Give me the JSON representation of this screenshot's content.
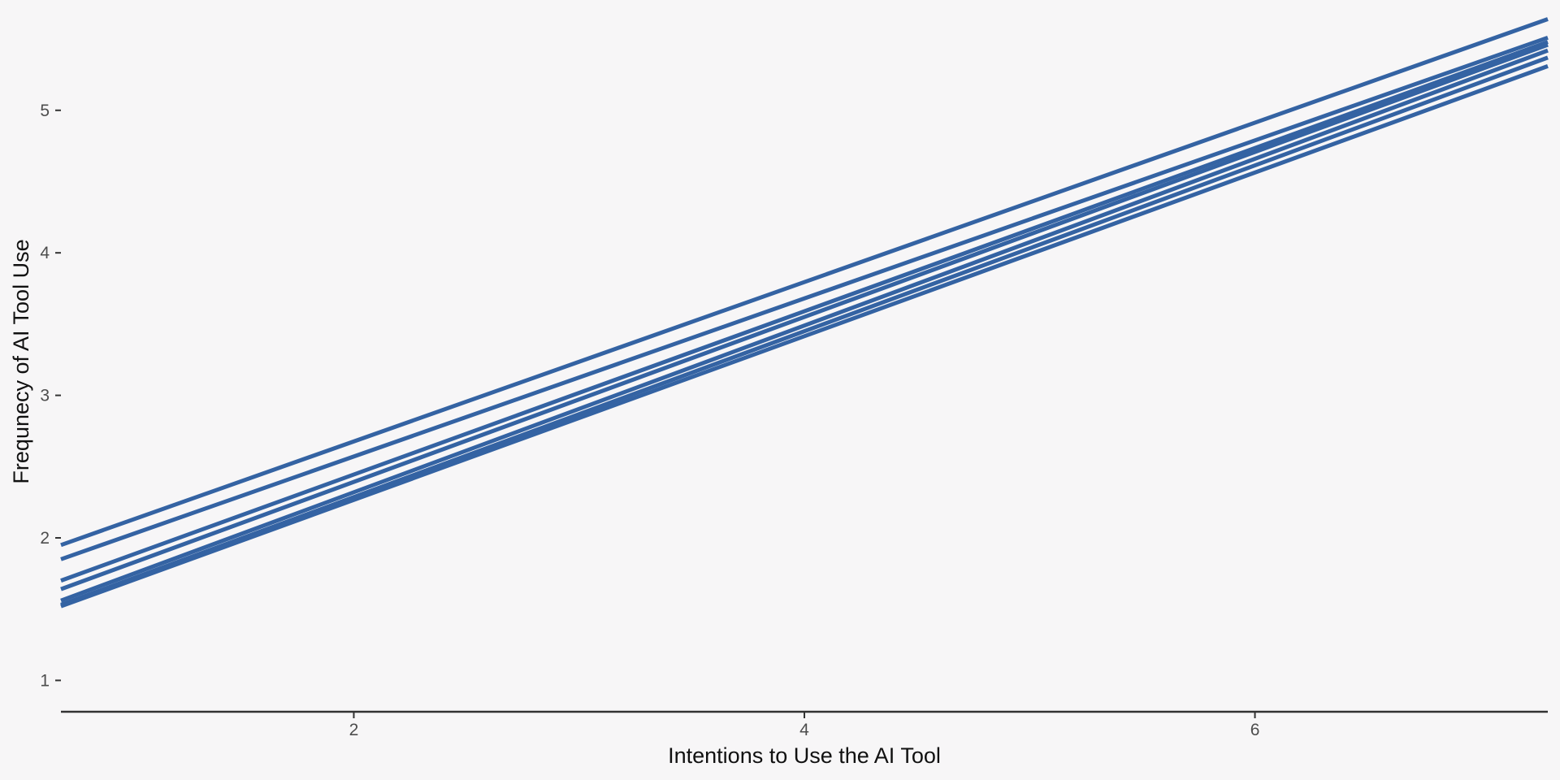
{
  "chart_data": {
    "type": "line",
    "title": "",
    "xlabel": "Intentions to Use the AI Tool",
    "ylabel": "Frequnecy of AI Tool Use",
    "xlim": [
      0.7,
      7.3
    ],
    "ylim": [
      0.78,
      5.66
    ],
    "x_ticks": [
      2,
      4,
      6
    ],
    "y_ticks": [
      1,
      2,
      3,
      4,
      5
    ],
    "grid": false,
    "line_color": "#3463a3",
    "background_color": "#f7f6f7",
    "series": [
      {
        "x": [
          0.7,
          7.3
        ],
        "y": [
          1.95,
          5.64
        ]
      },
      {
        "x": [
          0.7,
          7.3
        ],
        "y": [
          1.85,
          5.51
        ]
      },
      {
        "x": [
          0.7,
          7.3
        ],
        "y": [
          1.7,
          5.48
        ]
      },
      {
        "x": [
          0.7,
          7.3
        ],
        "y": [
          1.64,
          5.46
        ]
      },
      {
        "x": [
          0.7,
          7.3
        ],
        "y": [
          1.56,
          5.42
        ]
      },
      {
        "x": [
          0.7,
          7.3
        ],
        "y": [
          1.53,
          5.37
        ]
      },
      {
        "x": [
          0.7,
          7.3
        ],
        "y": [
          1.52,
          5.31
        ]
      }
    ]
  }
}
